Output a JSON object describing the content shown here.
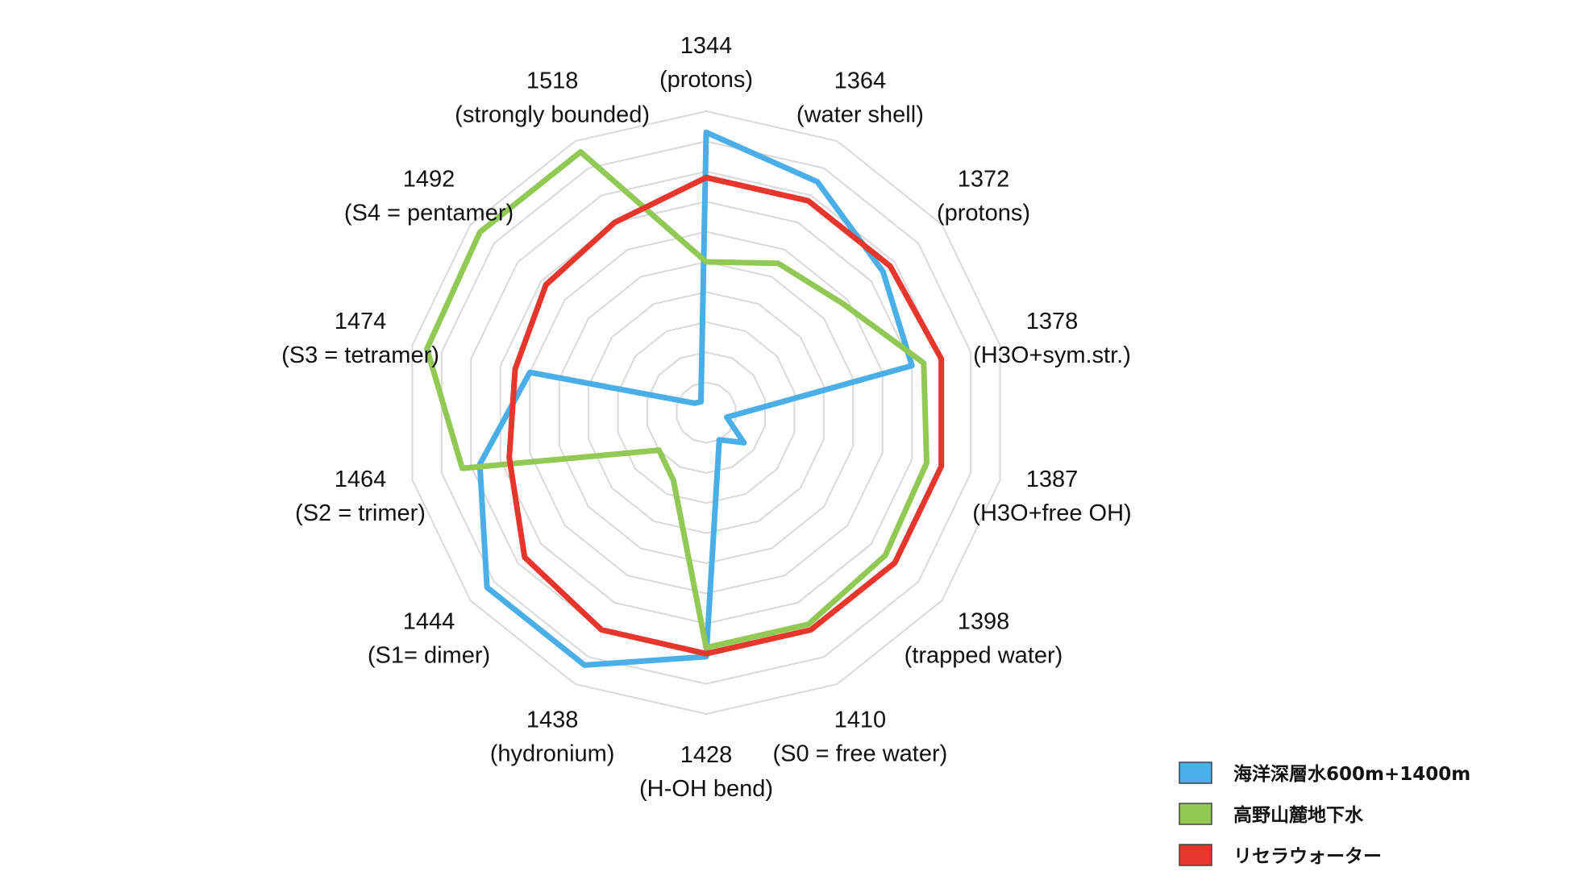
{
  "chart_data": {
    "type": "radar",
    "axes": [
      {
        "value": "1344",
        "label": "(protons)"
      },
      {
        "value": "1364",
        "label": "(water shell)"
      },
      {
        "value": "1372",
        "label": "(protons)"
      },
      {
        "value": "1378",
        "label": "(H3O+sym.str.)"
      },
      {
        "value": "1387",
        "label": "(H3O+free OH)"
      },
      {
        "value": "1398",
        "label": "(trapped water)"
      },
      {
        "value": "1410",
        "label": "(S0 = free water)"
      },
      {
        "value": "1428",
        "label": "(H-OH bend)"
      },
      {
        "value": "1438",
        "label": "(hydronium)"
      },
      {
        "value": "1444",
        "label": "(S1= dimer)"
      },
      {
        "value": "1464",
        "label": "(S2 = trimer)"
      },
      {
        "value": "1474",
        "label": "(S3 = tetramer)"
      },
      {
        "value": "1492",
        "label": "(S4 = pentamer)"
      },
      {
        "value": "1518",
        "label": "(strongly bounded)"
      }
    ],
    "rmax": 10,
    "rings": 10,
    "grid": true,
    "legend_position": "bottom-right",
    "series": [
      {
        "name": "海洋深層水600m+1400m",
        "color": "#4aaee8",
        "values": [
          9.3,
          8.5,
          7.5,
          7.0,
          0.7,
          1.6,
          1.0,
          8.1,
          9.3,
          9.3,
          7.7,
          6.0,
          0.5,
          0.4
        ]
      },
      {
        "name": "高野山麓地下水",
        "color": "#92c954",
        "values": [
          5.0,
          5.5,
          5.8,
          7.4,
          7.5,
          7.6,
          7.8,
          7.8,
          2.5,
          2.0,
          8.3,
          9.5,
          9.6,
          9.6
        ]
      },
      {
        "name": "リセラウォーター",
        "color": "#e8362c",
        "values": [
          7.8,
          7.8,
          7.8,
          8.0,
          8.0,
          8.0,
          8.0,
          8.0,
          8.0,
          7.7,
          6.7,
          6.5,
          6.8,
          7.0
        ]
      }
    ]
  }
}
